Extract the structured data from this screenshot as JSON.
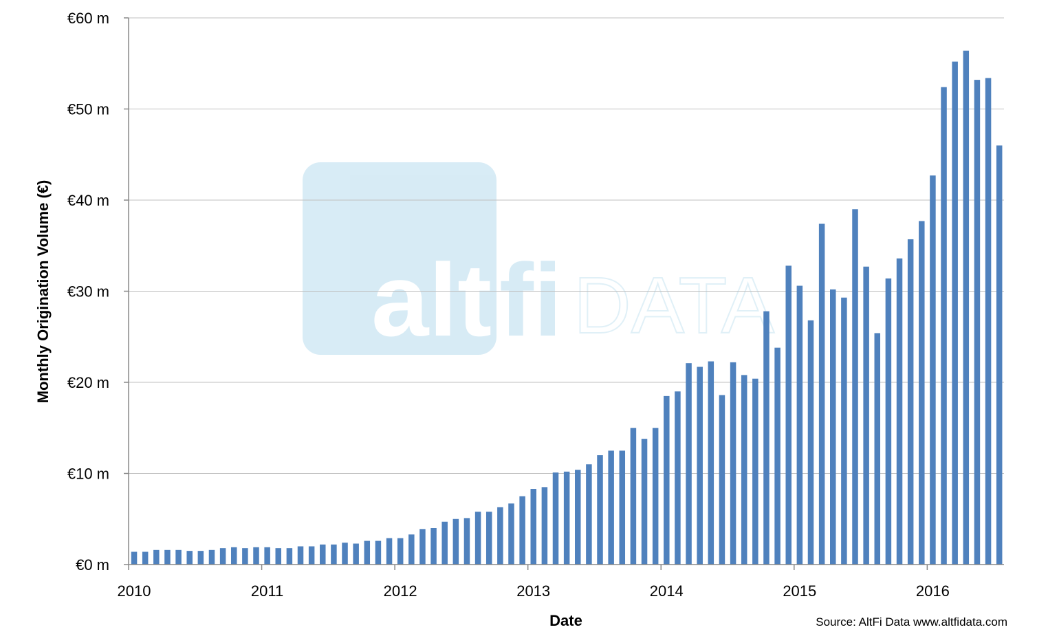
{
  "chart_data": {
    "type": "bar",
    "xlabel": "Date",
    "ylabel": "Monthly Origination Volume (€)",
    "ylim": [
      0,
      60
    ],
    "yticks": [
      "€0 m",
      "€10 m",
      "€20 m",
      "€30 m",
      "€40 m",
      "€50 m",
      "€60 m"
    ],
    "xticks": [
      "2010",
      "2011",
      "2012",
      "2013",
      "2014",
      "2015",
      "2016"
    ],
    "grid": "horizontal",
    "bar_color": "#4f81bd",
    "start": "2010-01",
    "values": [
      1.4,
      1.4,
      1.6,
      1.6,
      1.6,
      1.5,
      1.5,
      1.6,
      1.8,
      1.9,
      1.8,
      1.9,
      1.9,
      1.8,
      1.8,
      2.0,
      2.0,
      2.2,
      2.2,
      2.4,
      2.3,
      2.6,
      2.6,
      2.9,
      2.9,
      3.3,
      3.9,
      4.0,
      4.7,
      5.0,
      5.1,
      5.8,
      5.8,
      6.3,
      6.7,
      7.5,
      8.3,
      8.5,
      10.1,
      10.2,
      10.4,
      11.0,
      12.0,
      12.5,
      12.5,
      15.0,
      13.8,
      15.0,
      18.5,
      19.0,
      22.1,
      21.7,
      22.3,
      18.6,
      22.2,
      20.8,
      20.4,
      27.8,
      23.8,
      32.8,
      30.6,
      26.8,
      37.4,
      30.2,
      29.3,
      39.0,
      32.7,
      25.4,
      31.4,
      33.6,
      35.7,
      37.7,
      42.7,
      52.4,
      55.2,
      56.4,
      53.2,
      53.4,
      46.0
    ]
  },
  "source_text": "Source: AltFi Data www.altfidata.com",
  "watermark": {
    "word1": "alt",
    "word2": "fi",
    "word3": "DATA",
    "color": "#b8dcee"
  }
}
